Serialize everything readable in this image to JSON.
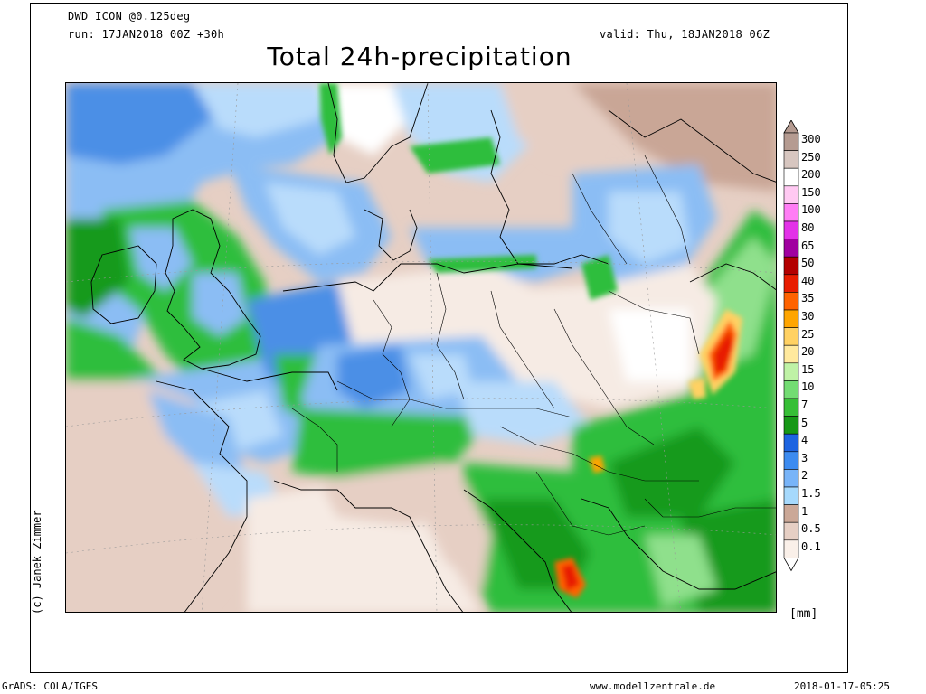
{
  "header": {
    "model": "DWD ICON @0.125deg",
    "run": "run: 17JAN2018 00Z +30h",
    "valid": "valid: Thu, 18JAN2018 06Z",
    "title": "Total 24h-precipitation"
  },
  "credit": "(c) Janek Zimmer",
  "footer": {
    "left": "GrADS: COLA/IGES",
    "center": "www.modellzentrale.de",
    "right": "2018-01-17-05:25"
  },
  "legend": {
    "unit": "[mm]",
    "labels": [
      "300",
      "250",
      "200",
      "150",
      "100",
      "80",
      "65",
      "50",
      "40",
      "35",
      "30",
      "25",
      "20",
      "15",
      "10",
      "7",
      "5",
      "4",
      "3",
      "2",
      "1.5",
      "1",
      "0.5",
      "0.1"
    ],
    "colors": [
      "#b59b91",
      "#d7c6c0",
      "#ffffff",
      "#ffc9f2",
      "#ff7df5",
      "#e331e8",
      "#a0009f",
      "#b30000",
      "#e81d00",
      "#ff6300",
      "#ffa500",
      "#ffd163",
      "#ffe99e",
      "#bff2a6",
      "#73dc73",
      "#36bf36",
      "#169816",
      "#1d64e1",
      "#3c8bf0",
      "#78b4f8",
      "#a6d9fc",
      "#cba897",
      "#e6cfc4",
      "#faf0e9"
    ],
    "top_color": "#b59b91",
    "bottom_color": "#ffffff"
  },
  "colors": {
    "sea_blue": "#8bbdf4",
    "deep_blue": "#4b8fe6",
    "light_blue": "#b9dcfb",
    "tan": "#e6cfc4",
    "light_tan": "#f6ebe4",
    "brown": "#c9a696",
    "green": "#2dbe3c",
    "dark_green": "#139a1e",
    "light_green": "#8fe08c",
    "red": "#e81d00",
    "orange": "#ff8c00",
    "border_line": "#000000",
    "dotted_grid": "#999999"
  }
}
